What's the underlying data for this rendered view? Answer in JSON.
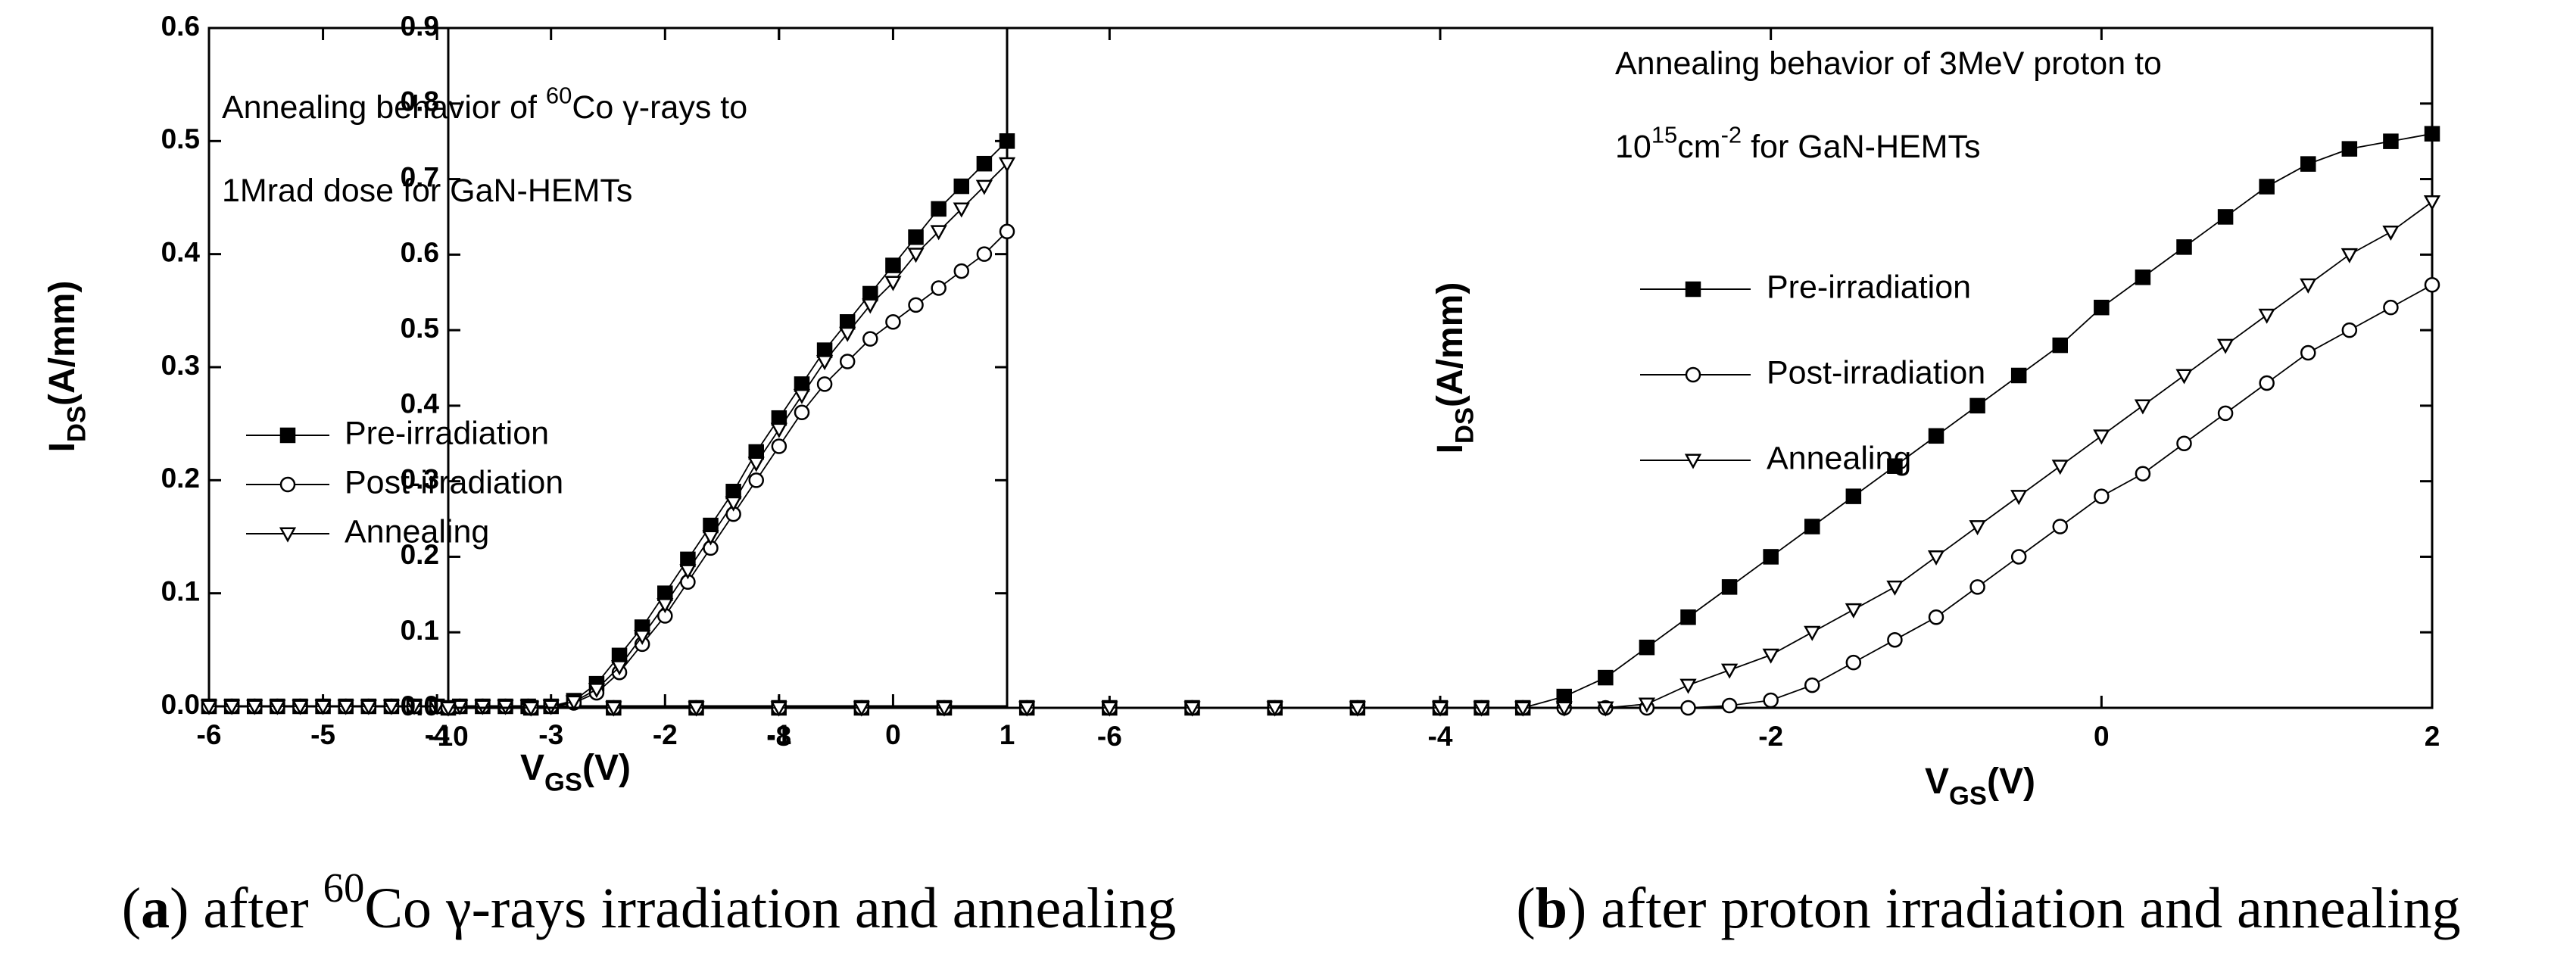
{
  "chart_data": [
    {
      "type": "scatter",
      "annotation": [
        [
          {
            "t": "Annealing behavior of "
          },
          {
            "t": "60",
            "sup": true
          },
          {
            "t": "Co γ-rays  to"
          }
        ],
        [
          {
            "t": "1Mrad dose  for GaN-HEMTs"
          }
        ]
      ],
      "xlabel": [
        {
          "t": "V"
        },
        {
          "t": "GS",
          "sub": true
        },
        {
          "t": "(V)"
        }
      ],
      "ylabel": [
        {
          "t": "I"
        },
        {
          "t": "DS",
          "sub": true
        },
        {
          "t": "(A/mm)"
        }
      ],
      "caption": [
        {
          "t": "("
        },
        {
          "t": "a",
          "bold": true
        },
        {
          "t": ") after "
        },
        {
          "t": "60",
          "sup": true
        },
        {
          "t": "Co γ-rays irradiation and annealing"
        }
      ],
      "xlim": [
        -6,
        1
      ],
      "xticks": [
        -6,
        -5,
        -4,
        -3,
        -2,
        -1,
        0,
        1
      ],
      "ylim": [
        0,
        0.6
      ],
      "yticks": [
        {
          "value": 0,
          "label": "0.0"
        },
        0.1,
        0.2,
        0.3,
        0.4,
        0.5,
        0.6
      ],
      "x": [
        -6,
        -5.8,
        -5.6,
        -5.4,
        -5.2,
        -5,
        -4.8,
        -4.6,
        -4.4,
        -4.2,
        -4,
        -3.8,
        -3.6,
        -3.4,
        -3.2,
        -3,
        -2.8,
        -2.6,
        -2.4,
        -2.2,
        -2,
        -1.8,
        -1.6,
        -1.4,
        -1.2,
        -1,
        -0.8,
        -0.6,
        -0.4,
        -0.2,
        0,
        0.2,
        0.4,
        0.6,
        0.8,
        1
      ],
      "series": [
        {
          "name": "Pre-irradiation",
          "color": "#000000",
          "marker": "square",
          "values": [
            0,
            0,
            0,
            0,
            0,
            0,
            0,
            0,
            0,
            0,
            0,
            0,
            0,
            0,
            0,
            0,
            0.005,
            0.02,
            0.045,
            0.07,
            0.1,
            0.13,
            0.16,
            0.19,
            0.225,
            0.255,
            0.285,
            0.315,
            0.34,
            0.365,
            0.39,
            0.415,
            0.44,
            0.46,
            0.48,
            0.5
          ]
        },
        {
          "name": "Post-irradiation",
          "color": "#000000",
          "marker": "circle",
          "values": [
            0,
            0,
            0,
            0,
            0,
            0,
            0,
            0,
            0,
            0,
            0,
            0,
            0,
            0,
            0,
            0,
            0.003,
            0.012,
            0.03,
            0.055,
            0.08,
            0.11,
            0.14,
            0.17,
            0.2,
            0.23,
            0.26,
            0.285,
            0.305,
            0.325,
            0.34,
            0.355,
            0.37,
            0.385,
            0.4,
            0.42
          ]
        },
        {
          "name": "Annealing",
          "color": "#000000",
          "marker": "triangle-down",
          "values": [
            0,
            0,
            0,
            0,
            0,
            0,
            0,
            0,
            0,
            0,
            0,
            0,
            0,
            0,
            0,
            0,
            0.004,
            0.015,
            0.035,
            0.062,
            0.09,
            0.12,
            0.15,
            0.18,
            0.215,
            0.245,
            0.275,
            0.305,
            0.33,
            0.355,
            0.375,
            0.4,
            0.42,
            0.44,
            0.46,
            0.48
          ]
        }
      ]
    },
    {
      "type": "scatter",
      "annotation": [
        [
          {
            "t": "Annealing behavior of 3MeV proton  to"
          }
        ],
        [
          {
            "t": "10"
          },
          {
            "t": "15",
            "sup": true
          },
          {
            "t": "cm"
          },
          {
            "t": "-2",
            "sup": true
          },
          {
            "t": "  for GaN-HEMTs"
          }
        ]
      ],
      "xlabel": [
        {
          "t": "V"
        },
        {
          "t": "GS",
          "sub": true
        },
        {
          "t": "(V)"
        }
      ],
      "ylabel": [
        {
          "t": "I"
        },
        {
          "t": "DS",
          "sub": true
        },
        {
          "t": "(A/mm)"
        }
      ],
      "caption": [
        {
          "t": "("
        },
        {
          "t": "b",
          "bold": true
        },
        {
          "t": ") after proton irradiation and annealing"
        }
      ],
      "xlim": [
        -10,
        2
      ],
      "xticks": [
        -10,
        -8,
        -6,
        -4,
        -2,
        0,
        2
      ],
      "ylim": [
        0,
        0.9
      ],
      "yticks": [
        {
          "value": 0,
          "label": "0.0"
        },
        0.1,
        0.2,
        0.3,
        0.4,
        0.5,
        0.6,
        0.7,
        0.8,
        0.9
      ],
      "x": [
        -10,
        -9.5,
        -9,
        -8.5,
        -8,
        -7.5,
        -7,
        -6.5,
        -6,
        -5.5,
        -5,
        -4.5,
        -4,
        -3.75,
        -3.5,
        -3.25,
        -3,
        -2.75,
        -2.5,
        -2.25,
        -2,
        -1.75,
        -1.5,
        -1.25,
        -1,
        -0.75,
        -0.5,
        -0.25,
        0,
        0.25,
        0.5,
        0.75,
        1,
        1.25,
        1.5,
        1.75,
        2
      ],
      "series": [
        {
          "name": "Pre-irradiation",
          "color": "#000000",
          "marker": "square",
          "values": [
            0,
            0,
            0,
            0,
            0,
            0,
            0,
            0,
            0,
            0,
            0,
            0,
            0,
            0,
            0,
            0.015,
            0.04,
            0.08,
            0.12,
            0.16,
            0.2,
            0.24,
            0.28,
            0.32,
            0.36,
            0.4,
            0.44,
            0.48,
            0.53,
            0.57,
            0.61,
            0.65,
            0.69,
            0.72,
            0.74,
            0.75,
            0.76
          ]
        },
        {
          "name": "Post-irradiation",
          "color": "#000000",
          "marker": "circle",
          "values": [
            0,
            0,
            0,
            0,
            0,
            0,
            0,
            0,
            0,
            0,
            0,
            0,
            0,
            0,
            0,
            0,
            0,
            0,
            0,
            0.003,
            0.01,
            0.03,
            0.06,
            0.09,
            0.12,
            0.16,
            0.2,
            0.24,
            0.28,
            0.31,
            0.35,
            0.39,
            0.43,
            0.47,
            0.5,
            0.53,
            0.56
          ]
        },
        {
          "name": "Annealing",
          "color": "#000000",
          "marker": "triangle-down",
          "values": [
            0,
            0,
            0,
            0,
            0,
            0,
            0,
            0,
            0,
            0,
            0,
            0,
            0,
            0,
            0,
            0,
            0,
            0.005,
            0.03,
            0.05,
            0.07,
            0.1,
            0.13,
            0.16,
            0.2,
            0.24,
            0.28,
            0.32,
            0.36,
            0.4,
            0.44,
            0.48,
            0.52,
            0.56,
            0.6,
            0.63,
            0.67
          ]
        }
      ]
    }
  ]
}
